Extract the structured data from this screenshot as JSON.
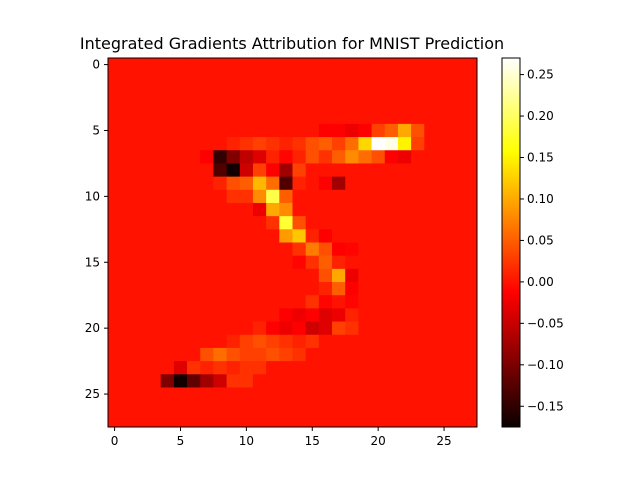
{
  "chart_data": {
    "type": "heatmap",
    "title": "Integrated Gradients Attribution for MNIST Prediction",
    "xlabel": "",
    "ylabel": "",
    "colormap": "hot",
    "rows": 28,
    "cols": 28,
    "xlim": [
      -0.5,
      27.5
    ],
    "ylim": [
      27.5,
      -0.5
    ],
    "x_ticks": [
      0,
      5,
      10,
      15,
      20,
      25
    ],
    "y_ticks": [
      0,
      5,
      10,
      15,
      20,
      25
    ],
    "colorbar": {
      "vmin": -0.175,
      "vmax": 0.27,
      "ticks": [
        -0.15,
        -0.1,
        -0.05,
        0.0,
        0.05,
        0.1,
        0.15,
        0.2,
        0.25
      ],
      "tick_labels": [
        "−0.15",
        "−0.10",
        "−0.05",
        "0.00",
        "0.05",
        "0.10",
        "0.15",
        "0.20",
        "0.25"
      ]
    },
    "background_value": 0.0,
    "cells": [
      {
        "row": 5,
        "col": 16,
        "v": -0.02
      },
      {
        "row": 5,
        "col": 17,
        "v": -0.02
      },
      {
        "row": 5,
        "col": 18,
        "v": -0.03
      },
      {
        "row": 5,
        "col": 19,
        "v": -0.02
      },
      {
        "row": 5,
        "col": 20,
        "v": 0.03
      },
      {
        "row": 5,
        "col": 21,
        "v": 0.05
      },
      {
        "row": 5,
        "col": 22,
        "v": 0.1
      },
      {
        "row": 5,
        "col": 23,
        "v": 0.04
      },
      {
        "row": 6,
        "col": 9,
        "v": 0.01
      },
      {
        "row": 6,
        "col": 10,
        "v": 0.02
      },
      {
        "row": 6,
        "col": 11,
        "v": 0.03
      },
      {
        "row": 6,
        "col": 12,
        "v": 0.02
      },
      {
        "row": 6,
        "col": 13,
        "v": 0.01
      },
      {
        "row": 6,
        "col": 14,
        "v": 0.02
      },
      {
        "row": 6,
        "col": 15,
        "v": 0.04
      },
      {
        "row": 6,
        "col": 16,
        "v": 0.05
      },
      {
        "row": 6,
        "col": 17,
        "v": 0.03
      },
      {
        "row": 6,
        "col": 18,
        "v": 0.06
      },
      {
        "row": 6,
        "col": 19,
        "v": 0.13
      },
      {
        "row": 6,
        "col": 20,
        "v": 0.27
      },
      {
        "row": 6,
        "col": 21,
        "v": 0.26
      },
      {
        "row": 6,
        "col": 22,
        "v": 0.15
      },
      {
        "row": 6,
        "col": 23,
        "v": 0.03
      },
      {
        "row": 7,
        "col": 7,
        "v": -0.02
      },
      {
        "row": 7,
        "col": 8,
        "v": -0.15
      },
      {
        "row": 7,
        "col": 9,
        "v": -0.1
      },
      {
        "row": 7,
        "col": 10,
        "v": -0.06
      },
      {
        "row": 7,
        "col": 11,
        "v": -0.04
      },
      {
        "row": 7,
        "col": 12,
        "v": 0.01
      },
      {
        "row": 7,
        "col": 13,
        "v": -0.01
      },
      {
        "row": 7,
        "col": 14,
        "v": 0.01
      },
      {
        "row": 7,
        "col": 15,
        "v": 0.04
      },
      {
        "row": 7,
        "col": 16,
        "v": 0.02
      },
      {
        "row": 7,
        "col": 17,
        "v": 0.05
      },
      {
        "row": 7,
        "col": 18,
        "v": 0.08
      },
      {
        "row": 7,
        "col": 19,
        "v": 0.06
      },
      {
        "row": 7,
        "col": 20,
        "v": 0.04
      },
      {
        "row": 7,
        "col": 21,
        "v": -0.02
      },
      {
        "row": 7,
        "col": 22,
        "v": -0.03
      },
      {
        "row": 8,
        "col": 8,
        "v": -0.13
      },
      {
        "row": 8,
        "col": 9,
        "v": -0.17
      },
      {
        "row": 8,
        "col": 10,
        "v": -0.05
      },
      {
        "row": 8,
        "col": 11,
        "v": 0.03
      },
      {
        "row": 8,
        "col": 12,
        "v": -0.02
      },
      {
        "row": 8,
        "col": 13,
        "v": -0.08
      },
      {
        "row": 8,
        "col": 14,
        "v": 0.03
      },
      {
        "row": 9,
        "col": 8,
        "v": 0.01
      },
      {
        "row": 9,
        "col": 9,
        "v": 0.04
      },
      {
        "row": 9,
        "col": 10,
        "v": 0.05
      },
      {
        "row": 9,
        "col": 11,
        "v": 0.11
      },
      {
        "row": 9,
        "col": 12,
        "v": 0.06
      },
      {
        "row": 9,
        "col": 13,
        "v": -0.13
      },
      {
        "row": 9,
        "col": 14,
        "v": 0.01
      },
      {
        "row": 9,
        "col": 16,
        "v": -0.02
      },
      {
        "row": 9,
        "col": 17,
        "v": -0.08
      },
      {
        "row": 10,
        "col": 9,
        "v": 0.02
      },
      {
        "row": 10,
        "col": 10,
        "v": 0.02
      },
      {
        "row": 10,
        "col": 11,
        "v": 0.08
      },
      {
        "row": 10,
        "col": 12,
        "v": 0.19
      },
      {
        "row": 10,
        "col": 13,
        "v": 0.05
      },
      {
        "row": 11,
        "col": 11,
        "v": -0.03
      },
      {
        "row": 11,
        "col": 12,
        "v": 0.1
      },
      {
        "row": 11,
        "col": 13,
        "v": 0.08
      },
      {
        "row": 12,
        "col": 12,
        "v": 0.02
      },
      {
        "row": 12,
        "col": 13,
        "v": 0.18
      },
      {
        "row": 12,
        "col": 14,
        "v": 0.04
      },
      {
        "row": 13,
        "col": 13,
        "v": 0.09
      },
      {
        "row": 13,
        "col": 14,
        "v": 0.12
      },
      {
        "row": 13,
        "col": 15,
        "v": 0.01
      },
      {
        "row": 13,
        "col": 16,
        "v": -0.02
      },
      {
        "row": 14,
        "col": 14,
        "v": 0.02
      },
      {
        "row": 14,
        "col": 15,
        "v": 0.07
      },
      {
        "row": 14,
        "col": 16,
        "v": 0.04
      },
      {
        "row": 14,
        "col": 17,
        "v": -0.02
      },
      {
        "row": 14,
        "col": 18,
        "v": -0.01
      },
      {
        "row": 15,
        "col": 14,
        "v": -0.01
      },
      {
        "row": 15,
        "col": 15,
        "v": 0.02
      },
      {
        "row": 15,
        "col": 16,
        "v": 0.05
      },
      {
        "row": 15,
        "col": 17,
        "v": 0.01
      },
      {
        "row": 16,
        "col": 16,
        "v": 0.04
      },
      {
        "row": 16,
        "col": 17,
        "v": 0.1
      },
      {
        "row": 16,
        "col": 18,
        "v": -0.03
      },
      {
        "row": 17,
        "col": 16,
        "v": 0.01
      },
      {
        "row": 17,
        "col": 17,
        "v": 0.05
      },
      {
        "row": 17,
        "col": 18,
        "v": -0.02
      },
      {
        "row": 18,
        "col": 15,
        "v": 0.02
      },
      {
        "row": 18,
        "col": 16,
        "v": -0.01
      },
      {
        "row": 18,
        "col": 18,
        "v": -0.01
      },
      {
        "row": 19,
        "col": 13,
        "v": -0.02
      },
      {
        "row": 19,
        "col": 14,
        "v": -0.03
      },
      {
        "row": 19,
        "col": 15,
        "v": -0.02
      },
      {
        "row": 19,
        "col": 16,
        "v": -0.04
      },
      {
        "row": 19,
        "col": 17,
        "v": -0.03
      },
      {
        "row": 19,
        "col": 18,
        "v": 0.01
      },
      {
        "row": 20,
        "col": 11,
        "v": 0.01
      },
      {
        "row": 20,
        "col": 12,
        "v": -0.02
      },
      {
        "row": 20,
        "col": 13,
        "v": -0.03
      },
      {
        "row": 20,
        "col": 14,
        "v": -0.02
      },
      {
        "row": 20,
        "col": 15,
        "v": -0.05
      },
      {
        "row": 20,
        "col": 16,
        "v": -0.04
      },
      {
        "row": 20,
        "col": 17,
        "v": 0.03
      },
      {
        "row": 20,
        "col": 18,
        "v": 0.02
      },
      {
        "row": 21,
        "col": 9,
        "v": 0.01
      },
      {
        "row": 21,
        "col": 10,
        "v": 0.03
      },
      {
        "row": 21,
        "col": 11,
        "v": 0.04
      },
      {
        "row": 21,
        "col": 12,
        "v": 0.03
      },
      {
        "row": 21,
        "col": 13,
        "v": 0.02
      },
      {
        "row": 21,
        "col": 14,
        "v": 0.01
      },
      {
        "row": 21,
        "col": 15,
        "v": 0.02
      },
      {
        "row": 22,
        "col": 7,
        "v": 0.04
      },
      {
        "row": 22,
        "col": 8,
        "v": 0.06
      },
      {
        "row": 22,
        "col": 9,
        "v": 0.04
      },
      {
        "row": 22,
        "col": 10,
        "v": 0.03
      },
      {
        "row": 22,
        "col": 11,
        "v": 0.03
      },
      {
        "row": 22,
        "col": 12,
        "v": 0.04
      },
      {
        "row": 22,
        "col": 13,
        "v": 0.03
      },
      {
        "row": 22,
        "col": 14,
        "v": 0.02
      },
      {
        "row": 23,
        "col": 5,
        "v": -0.04
      },
      {
        "row": 23,
        "col": 6,
        "v": 0.02
      },
      {
        "row": 23,
        "col": 7,
        "v": 0.01
      },
      {
        "row": 23,
        "col": 8,
        "v": 0.02
      },
      {
        "row": 23,
        "col": 9,
        "v": 0.01
      },
      {
        "row": 23,
        "col": 10,
        "v": 0.02
      },
      {
        "row": 23,
        "col": 11,
        "v": 0.02
      },
      {
        "row": 24,
        "col": 4,
        "v": -0.1
      },
      {
        "row": 24,
        "col": 5,
        "v": -0.17
      },
      {
        "row": 24,
        "col": 6,
        "v": -0.12
      },
      {
        "row": 24,
        "col": 7,
        "v": -0.08
      },
      {
        "row": 24,
        "col": 8,
        "v": -0.05
      },
      {
        "row": 24,
        "col": 9,
        "v": 0.02
      },
      {
        "row": 24,
        "col": 10,
        "v": 0.02
      }
    ]
  }
}
